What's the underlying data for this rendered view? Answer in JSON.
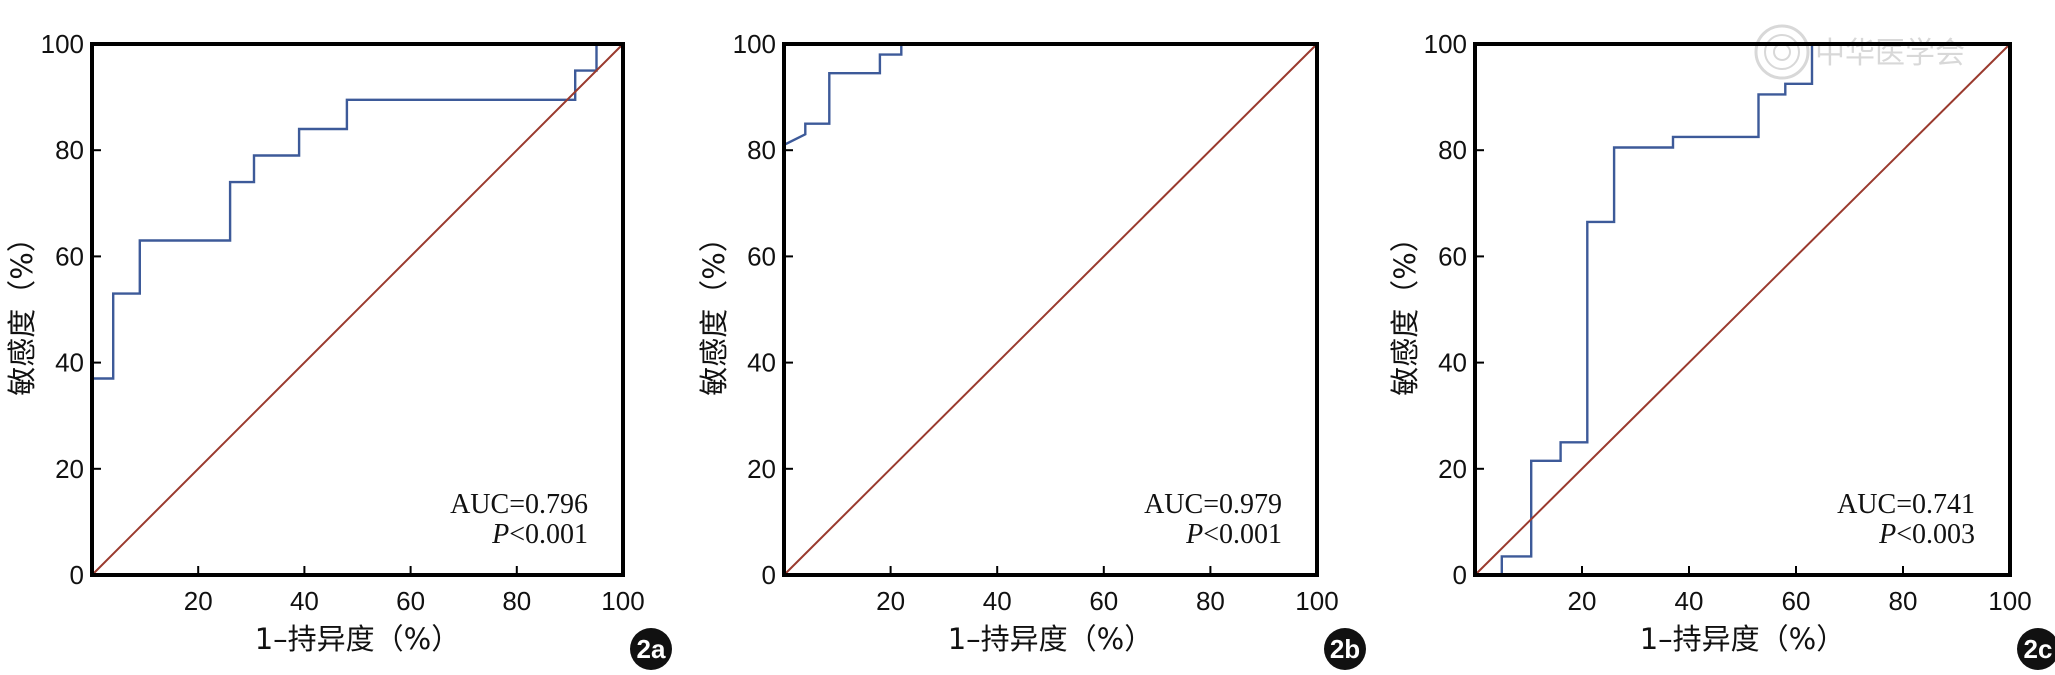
{
  "colors": {
    "roc_line": "#3d5a99",
    "reference_line": "#9a3a2e",
    "frame": "#000000",
    "badge_bg": "#111111",
    "watermark": "#d8d8d8"
  },
  "watermark": {
    "text": "中华医学会",
    "icon": "seal-icon"
  },
  "chart_data": [
    {
      "type": "line",
      "badge": "2a",
      "xlabel": "1–持异度（%）",
      "ylabel": "敏感度（%）",
      "xlim": [
        0,
        100
      ],
      "ylim": [
        0,
        100
      ],
      "x_ticks": [
        20,
        40,
        60,
        80,
        100
      ],
      "y_ticks": [
        0,
        20,
        40,
        60,
        80,
        100
      ],
      "grid": false,
      "annotation": {
        "auc": "AUC=0.796",
        "p_italic": "P",
        "p_rest": "<0.001"
      },
      "series": [
        {
          "role": "roc",
          "points": [
            [
              0,
              0
            ],
            [
              0,
              37
            ],
            [
              4,
              37
            ],
            [
              4,
              53
            ],
            [
              9,
              53
            ],
            [
              9,
              63
            ],
            [
              26,
              63
            ],
            [
              26,
              74
            ],
            [
              30.5,
              74
            ],
            [
              30.5,
              79
            ],
            [
              39,
              79
            ],
            [
              39,
              84
            ],
            [
              48,
              84
            ],
            [
              48,
              89.5
            ],
            [
              91,
              89.5
            ],
            [
              91,
              95
            ],
            [
              95,
              95
            ],
            [
              95,
              100
            ],
            [
              100,
              100
            ]
          ]
        },
        {
          "role": "reference",
          "points": [
            [
              0,
              0
            ],
            [
              100,
              100
            ]
          ]
        }
      ]
    },
    {
      "type": "line",
      "badge": "2b",
      "xlabel": "1–持异度（%）",
      "ylabel": "敏感度（%）",
      "xlim": [
        0,
        100
      ],
      "ylim": [
        0,
        100
      ],
      "x_ticks": [
        20,
        40,
        60,
        80,
        100
      ],
      "y_ticks": [
        0,
        20,
        40,
        60,
        80,
        100
      ],
      "grid": false,
      "annotation": {
        "auc": "AUC=0.979",
        "p_italic": "P",
        "p_rest": "<0.001"
      },
      "series": [
        {
          "role": "roc",
          "points": [
            [
              0,
              0
            ],
            [
              0,
              81
            ],
            [
              4,
              83
            ],
            [
              4,
              85
            ],
            [
              8.5,
              85
            ],
            [
              8.5,
              94.5
            ],
            [
              18,
              94.5
            ],
            [
              18,
              98
            ],
            [
              22,
              98
            ],
            [
              22,
              100
            ],
            [
              100,
              100
            ]
          ]
        },
        {
          "role": "reference",
          "points": [
            [
              0,
              0
            ],
            [
              100,
              100
            ]
          ]
        }
      ]
    },
    {
      "type": "line",
      "badge": "2c",
      "xlabel": "1–持异度（%）",
      "ylabel": "敏感度（%）",
      "xlim": [
        0,
        100
      ],
      "ylim": [
        0,
        100
      ],
      "x_ticks": [
        20,
        40,
        60,
        80,
        100
      ],
      "y_ticks": [
        0,
        20,
        40,
        60,
        80,
        100
      ],
      "grid": false,
      "annotation": {
        "auc": "AUC=0.741",
        "p_italic": "P",
        "p_rest": "<0.003"
      },
      "series": [
        {
          "role": "roc",
          "points": [
            [
              0,
              0
            ],
            [
              5,
              0
            ],
            [
              5,
              3.5
            ],
            [
              10.5,
              3.5
            ],
            [
              10.5,
              21.5
            ],
            [
              16,
              21.5
            ],
            [
              16,
              25
            ],
            [
              21,
              25
            ],
            [
              21,
              66.5
            ],
            [
              26,
              66.5
            ],
            [
              26,
              80.5
            ],
            [
              37,
              80.5
            ],
            [
              37,
              82.5
            ],
            [
              53,
              82.5
            ],
            [
              53,
              90.5
            ],
            [
              58,
              90.5
            ],
            [
              58,
              92.5
            ],
            [
              63,
              92.5
            ],
            [
              63,
              100
            ],
            [
              100,
              100
            ]
          ]
        },
        {
          "role": "reference",
          "points": [
            [
              0,
              0
            ],
            [
              100,
              100
            ]
          ]
        }
      ]
    }
  ]
}
